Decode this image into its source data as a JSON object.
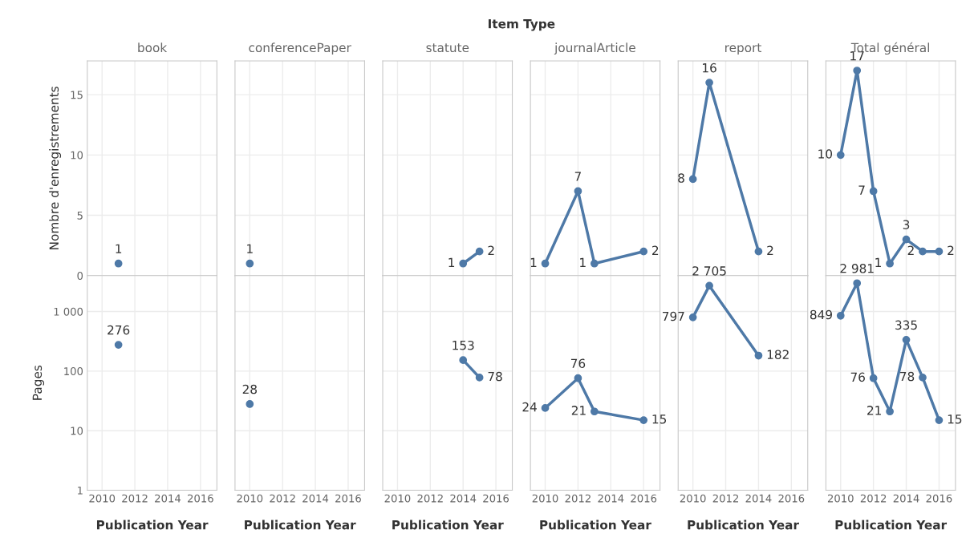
{
  "chart_data": [
    {
      "type": "line",
      "title": "book",
      "ylabel": "Nombre d'enregistrements",
      "annotations": [
        "Item Type"
      ],
      "x": [
        2011
      ],
      "series": [
        {
          "color": "#4e79a7",
          "values": [
            1
          ],
          "value_labels": [
            "1"
          ]
        }
      ],
      "xlim": [
        2009.1,
        2017
      ],
      "xticks": [
        2010,
        2012,
        2014,
        2016
      ],
      "ylim": [
        0,
        17.8
      ],
      "yticks": [
        0,
        5,
        10,
        15
      ],
      "grid": true,
      "marker": "circle",
      "tick_labels": "y"
    },
    {
      "type": "line",
      "title": "conferencePaper",
      "x": [
        2010
      ],
      "series": [
        {
          "color": "#4e79a7",
          "values": [
            1
          ],
          "value_labels": [
            "1"
          ]
        }
      ],
      "xlim": [
        2009.1,
        2017
      ],
      "xticks": [
        2010,
        2012,
        2014,
        2016
      ],
      "ylim": [
        0,
        17.8
      ],
      "yticks": [
        0,
        5,
        10,
        15
      ],
      "grid": true,
      "marker": "circle",
      "tick_labels": false
    },
    {
      "type": "line",
      "title": "statute",
      "x": [
        2014,
        2015
      ],
      "series": [
        {
          "color": "#4e79a7",
          "values": [
            1,
            2
          ],
          "value_labels": [
            "1",
            "2"
          ]
        }
      ],
      "xlim": [
        2009.1,
        2017
      ],
      "xticks": [
        2010,
        2012,
        2014,
        2016
      ],
      "ylim": [
        0,
        17.8
      ],
      "yticks": [
        0,
        5,
        10,
        15
      ],
      "grid": true,
      "marker": "circle",
      "tick_labels": false
    },
    {
      "type": "line",
      "title": "journalArticle",
      "x": [
        2010,
        2012,
        2013,
        2016
      ],
      "series": [
        {
          "color": "#4e79a7",
          "values": [
            1,
            7,
            1,
            2
          ],
          "value_labels": [
            "1",
            "7",
            "1",
            "2"
          ]
        }
      ],
      "xlim": [
        2009.1,
        2017
      ],
      "xticks": [
        2010,
        2012,
        2014,
        2016
      ],
      "ylim": [
        0,
        17.8
      ],
      "yticks": [
        0,
        5,
        10,
        15
      ],
      "grid": true,
      "marker": "circle",
      "tick_labels": false
    },
    {
      "type": "line",
      "title": "report",
      "x": [
        2010,
        2011,
        2014
      ],
      "series": [
        {
          "color": "#4e79a7",
          "values": [
            8,
            16,
            2
          ],
          "value_labels": [
            "8",
            "16",
            "2"
          ]
        }
      ],
      "xlim": [
        2009.1,
        2017
      ],
      "xticks": [
        2010,
        2012,
        2014,
        2016
      ],
      "ylim": [
        0,
        17.8
      ],
      "yticks": [
        0,
        5,
        10,
        15
      ],
      "grid": true,
      "marker": "circle",
      "tick_labels": false
    },
    {
      "type": "line",
      "title": "Total général",
      "x": [
        2010,
        2011,
        2012,
        2013,
        2014,
        2015,
        2016
      ],
      "series": [
        {
          "color": "#4e79a7",
          "values": [
            10,
            17,
            7,
            1,
            3,
            2,
            2
          ],
          "value_labels": [
            "10",
            "17",
            "7",
            "1",
            "3",
            "2",
            "2"
          ]
        }
      ],
      "xlim": [
        2009.1,
        2017
      ],
      "xticks": [
        2010,
        2012,
        2014,
        2016
      ],
      "ylim": [
        0,
        17.8
      ],
      "yticks": [
        0,
        5,
        10,
        15
      ],
      "grid": true,
      "marker": "circle",
      "tick_labels": false
    },
    {
      "type": "line",
      "xlabel": "Publication Year",
      "ylabel": "Pages",
      "x": [
        2011
      ],
      "series": [
        {
          "color": "#4e79a7",
          "values": [
            276
          ],
          "value_labels": [
            "276"
          ]
        }
      ],
      "xlim": [
        2009.1,
        2017
      ],
      "xticks": [
        2010,
        2012,
        2014,
        2016
      ],
      "ylim": [
        1,
        4000
      ],
      "yticks": [
        1,
        10,
        100,
        {
          "value": 1000,
          "label": "1 000"
        }
      ],
      "log": true,
      "grid": true,
      "marker": "circle"
    },
    {
      "type": "line",
      "xlabel": "Publication Year",
      "x": [
        2010
      ],
      "series": [
        {
          "color": "#4e79a7",
          "values": [
            28
          ],
          "value_labels": [
            "28"
          ]
        }
      ],
      "xlim": [
        2009.1,
        2017
      ],
      "xticks": [
        2010,
        2012,
        2014,
        2016
      ],
      "ylim": [
        1,
        4000
      ],
      "yticks": [
        1,
        10,
        100,
        1000
      ],
      "log": true,
      "grid": true,
      "marker": "circle",
      "tick_labels": "x"
    },
    {
      "type": "line",
      "xlabel": "Publication Year",
      "x": [
        2014,
        2015
      ],
      "series": [
        {
          "color": "#4e79a7",
          "values": [
            153,
            78
          ],
          "value_labels": [
            "153",
            "78"
          ]
        }
      ],
      "xlim": [
        2009.1,
        2017
      ],
      "xticks": [
        2010,
        2012,
        2014,
        2016
      ],
      "ylim": [
        1,
        4000
      ],
      "yticks": [
        1,
        10,
        100,
        1000
      ],
      "log": true,
      "grid": true,
      "marker": "circle",
      "tick_labels": "x"
    },
    {
      "type": "line",
      "xlabel": "Publication Year",
      "x": [
        2010,
        2012,
        2013,
        2016
      ],
      "series": [
        {
          "color": "#4e79a7",
          "values": [
            24,
            76,
            21,
            15
          ],
          "value_labels": [
            "24",
            "76",
            "21",
            "15"
          ]
        }
      ],
      "xlim": [
        2009.1,
        2017
      ],
      "xticks": [
        2010,
        2012,
        2014,
        2016
      ],
      "ylim": [
        1,
        4000
      ],
      "yticks": [
        1,
        10,
        100,
        1000
      ],
      "log": true,
      "grid": true,
      "marker": "circle",
      "tick_labels": "x"
    },
    {
      "type": "line",
      "xlabel": "Publication Year",
      "x": [
        2010,
        2011,
        2014
      ],
      "series": [
        {
          "color": "#4e79a7",
          "values": [
            797,
            2705,
            182
          ],
          "value_labels": [
            "797",
            "2 705",
            "182"
          ]
        }
      ],
      "xlim": [
        2009.1,
        2017
      ],
      "xticks": [
        2010,
        2012,
        2014,
        2016
      ],
      "ylim": [
        1,
        4000
      ],
      "yticks": [
        1,
        10,
        100,
        1000
      ],
      "log": true,
      "grid": true,
      "marker": "circle",
      "tick_labels": "x"
    },
    {
      "type": "line",
      "xlabel": "Publication Year",
      "x": [
        2010,
        2011,
        2012,
        2013,
        2014,
        2015,
        2016
      ],
      "series": [
        {
          "color": "#4e79a7",
          "values": [
            849,
            2981,
            76,
            21,
            335,
            78,
            15
          ],
          "value_labels": [
            "849",
            "2 981",
            "76",
            "21",
            "335",
            "78",
            "15"
          ]
        }
      ],
      "xlim": [
        2009.1,
        2017
      ],
      "xticks": [
        2010,
        2012,
        2014,
        2016
      ],
      "ylim": [
        1,
        4000
      ],
      "yticks": [
        1,
        10,
        100,
        1000
      ],
      "log": true,
      "grid": true,
      "marker": "circle",
      "tick_labels": "x"
    }
  ]
}
